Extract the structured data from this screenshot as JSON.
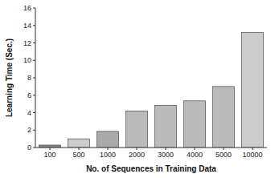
{
  "chart_data": {
    "type": "bar",
    "categories": [
      "100",
      "500",
      "1000",
      "2000",
      "3000",
      "4000",
      "5000",
      "10000"
    ],
    "values": [
      0.28,
      1.0,
      1.85,
      4.2,
      4.85,
      5.35,
      7.0,
      13.2
    ],
    "colors": [
      "#888888",
      "#cccccc",
      "#aaaaaa",
      "#bbbbbb",
      "#bbbbbb",
      "#bbbbbb",
      "#bbbbbb",
      "#cccccc"
    ],
    "xlabel": "No. of Sequences in Training Data",
    "ylabel": "Learning Time (Sec.)",
    "ylim": [
      0,
      16
    ],
    "yticks": [
      0,
      2,
      4,
      6,
      8,
      10,
      12,
      14,
      16
    ],
    "grid": false
  }
}
